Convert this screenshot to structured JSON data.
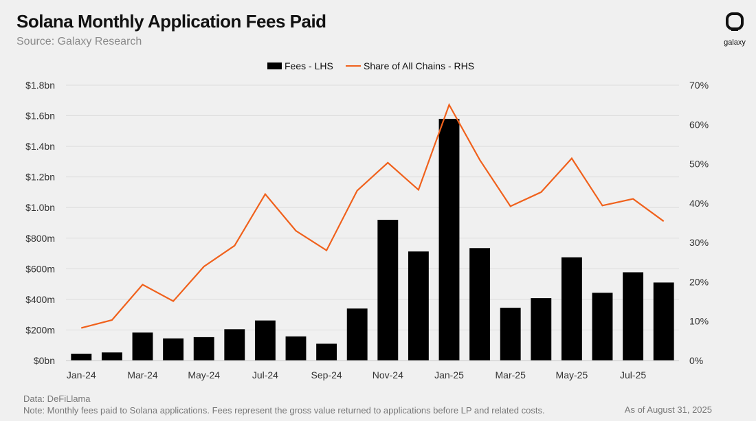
{
  "header": {
    "title": "Solana Monthly Application Fees Paid",
    "subtitle": "Source: Galaxy Research",
    "logo_text": "galaxy"
  },
  "footer": {
    "data_source": "Data: DeFiLlama",
    "note": "Note: Monthly fees paid to Solana applications. Fees represent the gross value returned to applications before LP and related costs.",
    "as_of": "As of August 31, 2025"
  },
  "colors": {
    "bar": "#000000",
    "line": "#f0611c",
    "grid": "#dcdcdc",
    "background": "#f0f0f0"
  },
  "chart_data": {
    "type": "bar",
    "title": "Solana Monthly Application Fees Paid",
    "categories": [
      "Jan-24",
      "Feb-24",
      "Mar-24",
      "Apr-24",
      "May-24",
      "Jun-24",
      "Jul-24",
      "Aug-24",
      "Sep-24",
      "Oct-24",
      "Nov-24",
      "Dec-24",
      "Jan-25",
      "Feb-25",
      "Mar-25",
      "Apr-25",
      "May-25",
      "Jun-25",
      "Jul-25",
      "Aug-25"
    ],
    "x_tick_labels": [
      "Jan-24",
      "Mar-24",
      "May-24",
      "Jul-24",
      "Sep-24",
      "Nov-24",
      "Jan-25",
      "Mar-25",
      "May-25",
      "Jul-25"
    ],
    "x_tick_indices": [
      0,
      2,
      4,
      6,
      8,
      10,
      12,
      14,
      16,
      18
    ],
    "series": [
      {
        "name": "Fees - LHS",
        "type": "bar",
        "axis": "left",
        "unit": "$M",
        "values": [
          45,
          53,
          183,
          145,
          153,
          205,
          262,
          158,
          110,
          340,
          920,
          713,
          1580,
          735,
          345,
          408,
          675,
          443,
          577,
          510
        ]
      },
      {
        "name": "Share of All Chains - RHS",
        "type": "line",
        "axis": "right",
        "unit": "%",
        "values": [
          8.3,
          10.3,
          19.3,
          15.1,
          23.9,
          29.2,
          42.3,
          33.0,
          28.0,
          43.2,
          50.3,
          43.4,
          65.0,
          51.0,
          39.2,
          42.8,
          51.4,
          39.4,
          41.1,
          35.4
        ]
      }
    ],
    "ylim_left": [
      0,
      1800
    ],
    "ylim_right": [
      0,
      70
    ],
    "y_left_ticks": [
      0,
      200,
      400,
      600,
      800,
      1000,
      1200,
      1400,
      1600,
      1800
    ],
    "y_left_labels": [
      "$0bn",
      "$200m",
      "$400m",
      "$600m",
      "$800m",
      "$1.0bn",
      "$1.2bn",
      "$1.4bn",
      "$1.6bn",
      "$1.8bn"
    ],
    "y_right_ticks": [
      0,
      10,
      20,
      30,
      40,
      50,
      60,
      70
    ],
    "y_right_labels": [
      "0%",
      "10%",
      "20%",
      "30%",
      "40%",
      "50%",
      "60%",
      "70%"
    ],
    "grid": true,
    "legend_position": "top-center"
  }
}
